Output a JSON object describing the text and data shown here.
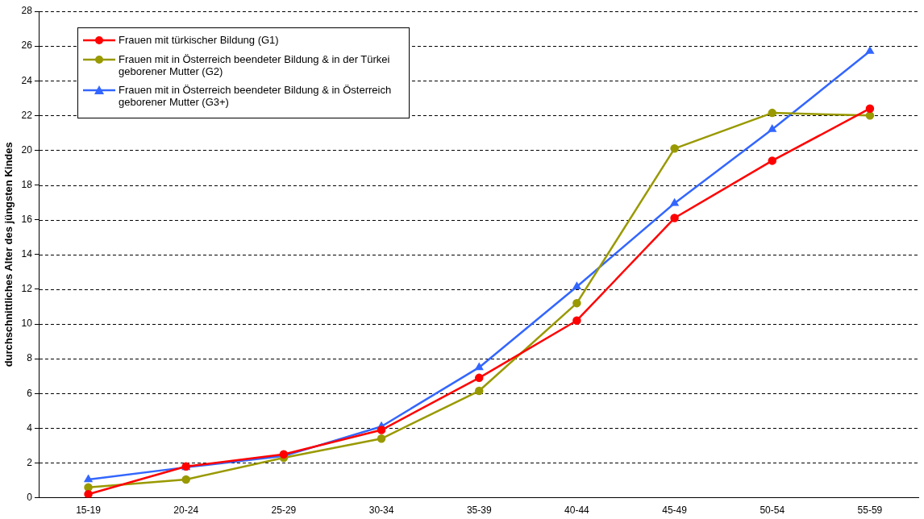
{
  "chart_data": {
    "type": "line",
    "ylabel": "durchschnittliches Alter des jüngsten Kindes",
    "categories": [
      "15-19",
      "20-24",
      "25-29",
      "30-34",
      "35-39",
      "40-44",
      "45-49",
      "50-54",
      "55-59"
    ],
    "series": [
      {
        "name": "Frauen mit türkischer Bildung (G1)",
        "color": "#ff0000",
        "marker": "circle",
        "values": [
          0.2,
          1.8,
          2.5,
          3.9,
          6.9,
          10.2,
          16.1,
          19.4,
          22.4
        ]
      },
      {
        "name": "Frauen mit in Österreich beendeter Bildung & in der Türkei geborener Mutter (G2)",
        "color": "#999900",
        "marker": "circle",
        "values": [
          0.6,
          1.05,
          2.3,
          3.4,
          6.15,
          11.2,
          20.1,
          22.15,
          22.0
        ]
      },
      {
        "name": "Frauen mit in Österreich beendeter Bildung & in Österreich geborener Mutter (G3+)",
        "color": "#3366ff",
        "marker": "triangle",
        "values": [
          1.05,
          1.75,
          2.4,
          4.1,
          7.5,
          12.15,
          16.95,
          21.2,
          25.7
        ]
      }
    ],
    "ylim": [
      0,
      28
    ],
    "yticks": [
      0,
      2,
      4,
      6,
      8,
      10,
      12,
      14,
      16,
      18,
      20,
      22,
      24,
      26,
      28
    ],
    "grid": "y",
    "legend": "top left",
    "line_style": "solid"
  }
}
